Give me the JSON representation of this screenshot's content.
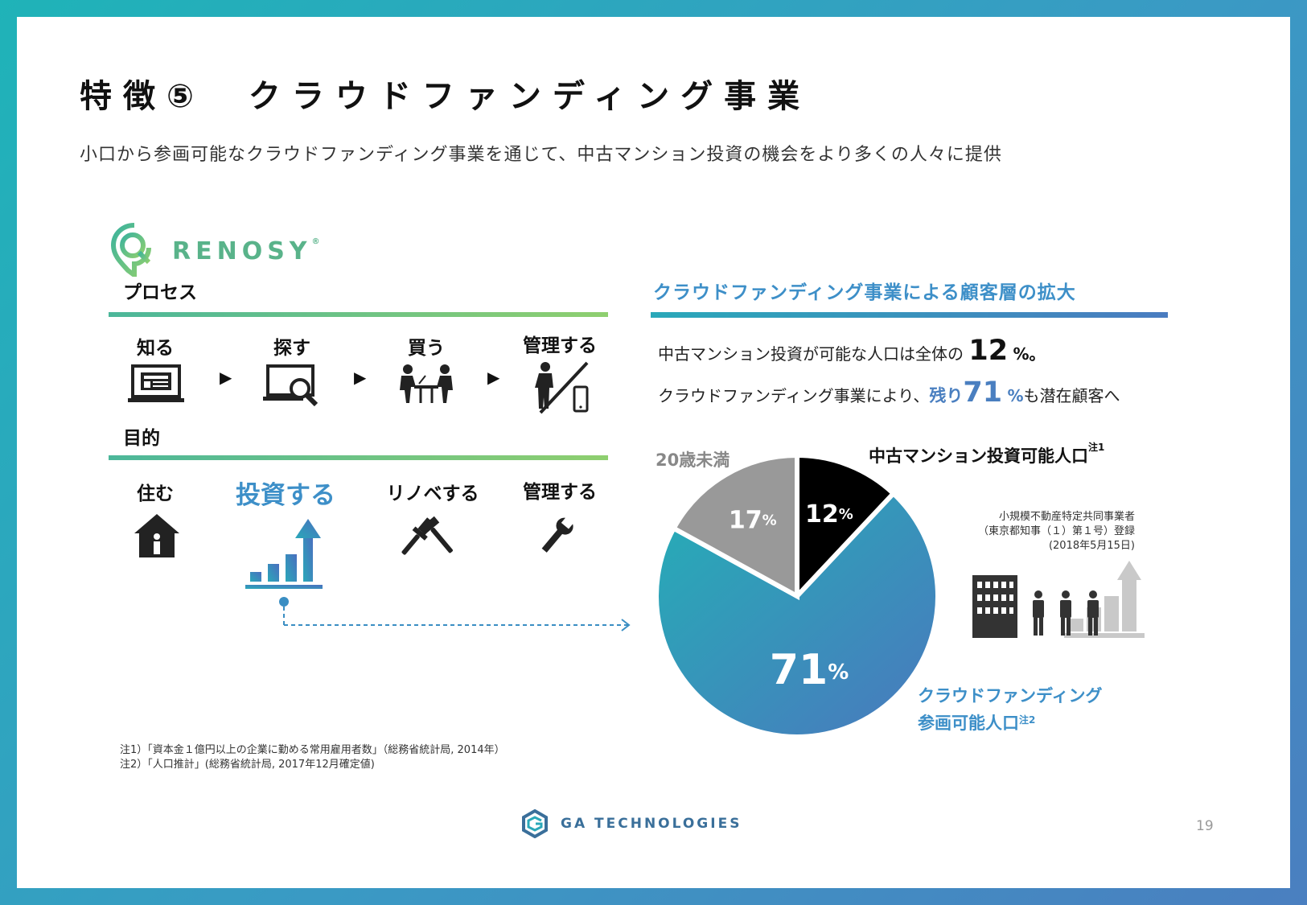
{
  "header": {
    "title": "特徴⑤　クラウドファンディング事業",
    "subtitle": "小口から参画可能なクラウドファンディング事業を通じて、中古マンション投資の機会をより多くの人々に提供"
  },
  "brand": {
    "renosy": "RENOSY",
    "registered": "®"
  },
  "left": {
    "process_heading": "プロセス",
    "process_steps": [
      {
        "label": "知る",
        "icon": "laptop-icon"
      },
      {
        "label": "探す",
        "icon": "search-laptop-icon"
      },
      {
        "label": "買う",
        "icon": "meeting-icon"
      },
      {
        "label": "管理する",
        "icon": "person-phone-icon"
      }
    ],
    "purpose_heading": "目的",
    "purpose_steps": [
      {
        "label": "住む",
        "icon": "house-icon"
      },
      {
        "label": "投資する",
        "icon": "growth-chart-icon"
      },
      {
        "label": "リノベする",
        "icon": "tools-icon"
      },
      {
        "label": "管理する",
        "icon": "wrench-icon"
      }
    ]
  },
  "right": {
    "heading": "クラウドファンディング事業による顧客層の拡大",
    "line1_prefix": "中古マンション投資が可能な人口は全体の",
    "line1_number": "12",
    "line1_suffix": "%。",
    "line2_prefix": "クラウドファンディング事業により、",
    "line2_rest": "残り",
    "line2_number": "71",
    "line2_pct": "%",
    "line2_suffix": "も潜在顧客へ",
    "label_under20": "20歳未満",
    "label_investable": "中古マンション投資可能人口",
    "label_investable_note": "注1",
    "label_crowd_line1": "クラウドファンディング",
    "label_crowd_line2": "参画可能人口",
    "label_crowd_note": "注2",
    "registration": [
      "小規模不動産特定共同事業者",
      "（東京都知事（１）第１号）登録",
      "(2018年5月15日)"
    ]
  },
  "chart_data": {
    "type": "pie",
    "slices": [
      {
        "label": "中古マンション投資可能人口",
        "value": 12,
        "display": "12",
        "color": "#000000"
      },
      {
        "label": "クラウドファンディング参画可能人口",
        "value": 71,
        "display": "71",
        "color": "#3a9ac4"
      },
      {
        "label": "20歳未満",
        "value": 17,
        "display": "17",
        "color": "#999999"
      }
    ],
    "unit": "%"
  },
  "notes": [
    "注1）「資本金１億円以上の企業に勤める常用雇用者数」（総務省統計局, 2014年）",
    "注2）「人口推計」(総務省統計局, 2017年12月確定値)"
  ],
  "footer": {
    "company": "GA TECHNOLOGIES",
    "page": "19"
  }
}
